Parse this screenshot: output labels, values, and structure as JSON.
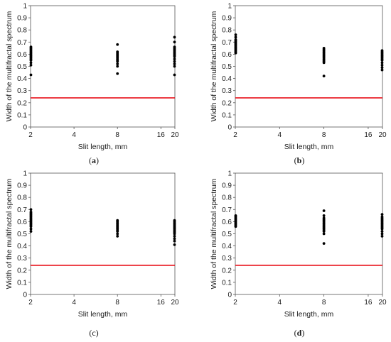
{
  "chart_data": [
    {
      "type": "scatter",
      "caption_prefix": "(",
      "caption_letter": "a",
      "caption_suffix": ")",
      "caption_bold": true,
      "xlabel": "Slit length, mm",
      "ylabel": "Width of the multifractal spectrum",
      "x_ticks": [
        2,
        4,
        8,
        16,
        20
      ],
      "y_ticks": [
        0,
        0.1,
        0.2,
        0.3,
        0.4,
        0.5,
        0.6,
        0.7,
        0.8,
        0.9,
        1
      ],
      "xlim": [
        2,
        20
      ],
      "ylim": [
        0,
        1
      ],
      "x_scale": "log",
      "grid": false,
      "threshold": 0.24,
      "threshold_color": "#e8121b",
      "point_color": "#000000",
      "series": [
        {
          "x": 2,
          "values": [
            0.43,
            0.51,
            0.53,
            0.55,
            0.56,
            0.57,
            0.58,
            0.59,
            0.6,
            0.61,
            0.62,
            0.63,
            0.64,
            0.65,
            0.66
          ]
        },
        {
          "x": 8,
          "values": [
            0.44,
            0.5,
            0.52,
            0.54,
            0.55,
            0.56,
            0.57,
            0.58,
            0.59,
            0.6,
            0.61,
            0.62,
            0.68
          ]
        },
        {
          "x": 20,
          "values": [
            0.43,
            0.5,
            0.52,
            0.54,
            0.56,
            0.58,
            0.59,
            0.6,
            0.61,
            0.62,
            0.63,
            0.64,
            0.65,
            0.66,
            0.7,
            0.74
          ]
        }
      ]
    },
    {
      "type": "scatter",
      "caption_prefix": "(",
      "caption_letter": "b",
      "caption_suffix": ")",
      "caption_bold": true,
      "xlabel": "Slit length, mm",
      "ylabel": "Width of the multifractal spectrum",
      "x_ticks": [
        2,
        4,
        8,
        16,
        20
      ],
      "y_ticks": [
        0,
        0.1,
        0.2,
        0.3,
        0.4,
        0.5,
        0.6,
        0.7,
        0.8,
        0.9,
        1
      ],
      "xlim": [
        2,
        20
      ],
      "ylim": [
        0,
        1
      ],
      "x_scale": "log",
      "grid": false,
      "threshold": 0.24,
      "threshold_color": "#e8121b",
      "point_color": "#000000",
      "series": [
        {
          "x": 2,
          "values": [
            0.61,
            0.62,
            0.63,
            0.64,
            0.65,
            0.66,
            0.67,
            0.68,
            0.69,
            0.7,
            0.71,
            0.72,
            0.74,
            0.76
          ]
        },
        {
          "x": 8,
          "values": [
            0.42,
            0.53,
            0.54,
            0.55,
            0.56,
            0.57,
            0.58,
            0.59,
            0.6,
            0.61,
            0.62,
            0.63,
            0.64,
            0.65
          ]
        },
        {
          "x": 20,
          "values": [
            0.47,
            0.49,
            0.51,
            0.53,
            0.55,
            0.56,
            0.57,
            0.58,
            0.59,
            0.6,
            0.61,
            0.62,
            0.63
          ]
        }
      ]
    },
    {
      "type": "scatter",
      "caption_prefix": "(",
      "caption_letter": "c",
      "caption_suffix": ")",
      "caption_bold": false,
      "xlabel": "Slit length, mm",
      "ylabel": "Width of the multifractal spectrum",
      "x_ticks": [
        2,
        4,
        8,
        16,
        20
      ],
      "y_ticks": [
        0,
        0.1,
        0.2,
        0.3,
        0.4,
        0.5,
        0.6,
        0.7,
        0.8,
        0.9,
        1
      ],
      "xlim": [
        2,
        20
      ],
      "ylim": [
        0,
        1
      ],
      "x_scale": "log",
      "grid": false,
      "threshold": 0.24,
      "threshold_color": "#e8121b",
      "point_color": "#000000",
      "series": [
        {
          "x": 2,
          "values": [
            0.52,
            0.54,
            0.56,
            0.57,
            0.58,
            0.59,
            0.6,
            0.61,
            0.62,
            0.63,
            0.64,
            0.65,
            0.66,
            0.67,
            0.68,
            0.7
          ]
        },
        {
          "x": 8,
          "values": [
            0.48,
            0.5,
            0.52,
            0.53,
            0.54,
            0.55,
            0.56,
            0.57,
            0.58,
            0.59,
            0.6,
            0.61
          ]
        },
        {
          "x": 20,
          "values": [
            0.41,
            0.44,
            0.46,
            0.48,
            0.5,
            0.51,
            0.52,
            0.53,
            0.54,
            0.55,
            0.56,
            0.57,
            0.58,
            0.59,
            0.6,
            0.61
          ]
        }
      ]
    },
    {
      "type": "scatter",
      "caption_prefix": "(",
      "caption_letter": "d",
      "caption_suffix": ")",
      "caption_bold": true,
      "xlabel": "Slit length, mm",
      "ylabel": "Width of the multifractal spectrum",
      "x_ticks": [
        2,
        4,
        8,
        16,
        20
      ],
      "y_ticks": [
        0,
        0.1,
        0.2,
        0.3,
        0.4,
        0.5,
        0.6,
        0.7,
        0.8,
        0.9,
        1
      ],
      "xlim": [
        2,
        20
      ],
      "ylim": [
        0,
        1
      ],
      "x_scale": "log",
      "grid": false,
      "threshold": 0.24,
      "threshold_color": "#e8121b",
      "point_color": "#000000",
      "series": [
        {
          "x": 2,
          "values": [
            0.56,
            0.57,
            0.58,
            0.59,
            0.6,
            0.61,
            0.62,
            0.63,
            0.64,
            0.65
          ]
        },
        {
          "x": 8,
          "values": [
            0.42,
            0.5,
            0.52,
            0.53,
            0.54,
            0.55,
            0.56,
            0.57,
            0.58,
            0.59,
            0.6,
            0.61,
            0.62,
            0.63,
            0.65,
            0.69
          ]
        },
        {
          "x": 20,
          "values": [
            0.48,
            0.5,
            0.52,
            0.54,
            0.55,
            0.56,
            0.57,
            0.58,
            0.59,
            0.6,
            0.61,
            0.62,
            0.63,
            0.64,
            0.66
          ]
        }
      ]
    }
  ]
}
